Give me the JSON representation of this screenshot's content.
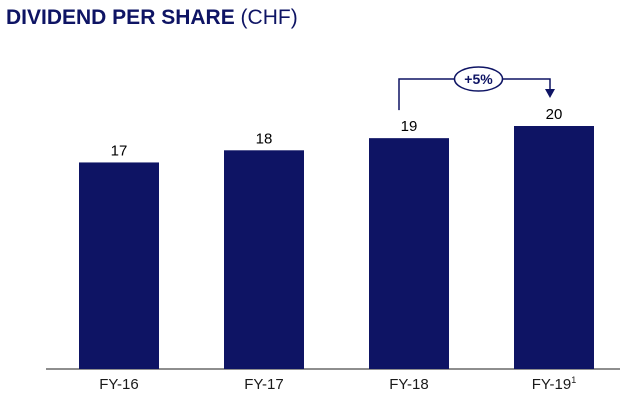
{
  "title": {
    "main": "DIVIDEND PER SHARE",
    "unit": "(CHF)"
  },
  "chart_data": {
    "type": "bar",
    "categories": [
      "FY-16",
      "FY-17",
      "FY-18",
      "FY-19"
    ],
    "category_footnotes": [
      "",
      "",
      "",
      "1"
    ],
    "values": [
      17,
      18,
      19,
      20
    ],
    "value_labels": [
      "17",
      "18",
      "19",
      "20"
    ],
    "ylim": [
      0,
      20
    ],
    "grid": false,
    "annotation": {
      "text": "+5%",
      "from": "FY-18",
      "to": "FY-19"
    },
    "bar_color": "#0e1464"
  }
}
